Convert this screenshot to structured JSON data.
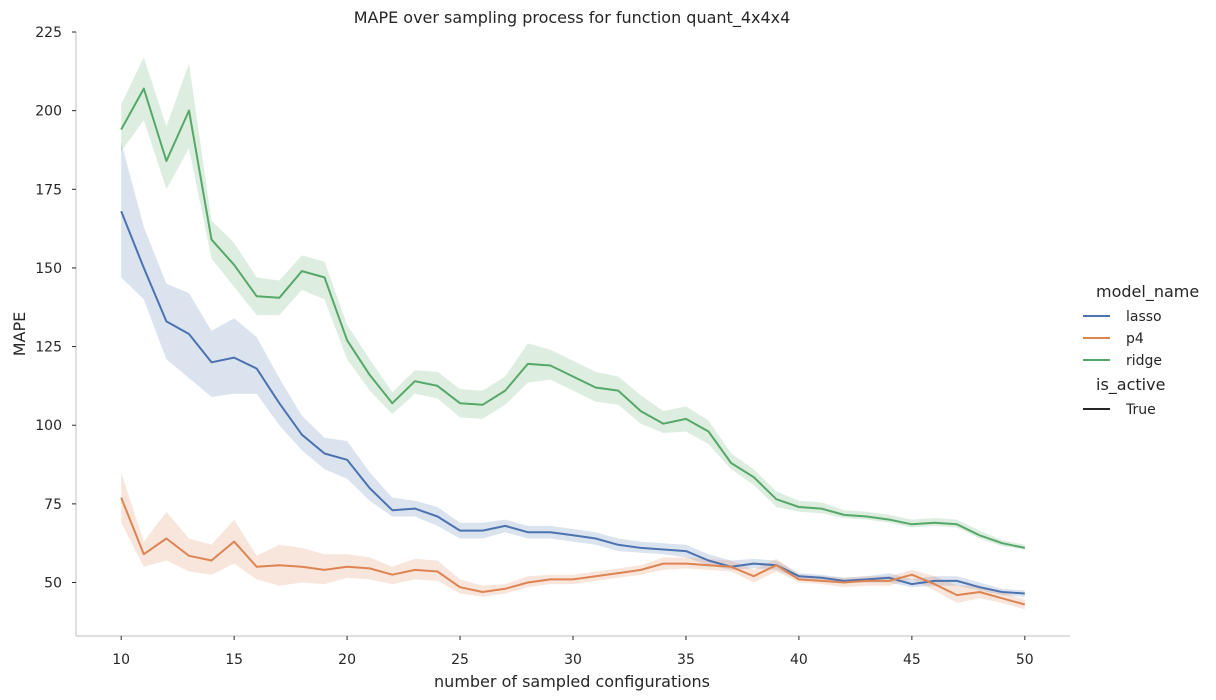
{
  "chart_data": {
    "type": "line",
    "title": "MAPE over sampling process for function quant_4x4x4",
    "xlabel": "number of sampled configurations",
    "ylabel": "MAPE",
    "xlim": [
      8,
      52
    ],
    "ylim": [
      33,
      225
    ],
    "xticks": [
      10,
      15,
      20,
      25,
      30,
      35,
      40,
      45,
      50
    ],
    "yticks": [
      50,
      75,
      100,
      125,
      150,
      175,
      200,
      225
    ],
    "grid": false,
    "legend": {
      "placement": "right",
      "hue_title": "model_name",
      "style_title": "is_active",
      "style_entries": [
        {
          "label": "True",
          "color": "#262626"
        }
      ]
    },
    "x": [
      10,
      11,
      12,
      13,
      14,
      15,
      16,
      17,
      18,
      19,
      20,
      21,
      22,
      23,
      24,
      25,
      26,
      27,
      28,
      29,
      30,
      31,
      32,
      33,
      34,
      35,
      36,
      37,
      38,
      39,
      40,
      41,
      42,
      43,
      44,
      45,
      46,
      47,
      48,
      49,
      50
    ],
    "series": [
      {
        "name": "lasso",
        "color": "#4c72b0",
        "values": [
          168,
          150,
          133,
          129,
          120,
          121.5,
          118,
          107,
          97,
          91,
          89,
          80,
          73,
          73.5,
          71,
          66.5,
          66.5,
          68,
          66,
          66,
          65,
          64,
          62,
          61,
          60.5,
          60,
          57,
          55,
          56,
          55.5,
          52,
          51.5,
          50.5,
          51,
          51.5,
          49.5,
          50.5,
          50.5,
          48.5,
          47,
          46.5
        ],
        "lower": [
          147,
          140,
          121,
          115,
          109,
          110,
          110,
          100,
          92,
          86,
          83,
          76,
          71,
          71,
          68,
          64,
          64,
          66,
          64,
          64,
          63,
          62,
          60,
          59.5,
          59,
          58,
          55.5,
          54,
          54.5,
          54,
          51,
          50.5,
          50,
          50,
          50,
          48.5,
          49,
          49,
          47.5,
          46,
          45.5
        ],
        "upper": [
          190,
          163,
          145,
          142,
          130,
          134,
          128,
          115,
          103,
          96,
          95,
          85,
          77,
          76,
          74,
          69,
          69,
          70,
          68,
          68,
          67,
          66,
          64,
          63,
          62.5,
          62,
          59,
          57,
          57.5,
          57,
          53,
          52.5,
          51.5,
          52,
          53,
          51,
          52,
          52,
          50,
          48,
          47.5
        ]
      },
      {
        "name": "p4",
        "color": "#dd8452",
        "values": [
          77,
          59,
          64,
          58.5,
          57,
          63,
          55,
          55.5,
          55,
          54,
          55,
          54.5,
          52.5,
          54,
          53.5,
          48.5,
          47,
          48,
          50,
          51,
          51,
          52,
          53,
          54,
          56,
          56,
          55.5,
          55,
          52,
          55.5,
          51,
          50.5,
          50,
          50.5,
          50.5,
          52.5,
          49.5,
          46,
          47,
          45,
          43
        ],
        "lower": [
          69,
          55,
          57,
          53.5,
          52.5,
          56,
          51,
          49,
          50,
          49.5,
          51.5,
          51,
          49.5,
          51,
          50.5,
          46.5,
          45.5,
          46.5,
          48.5,
          49.5,
          49.5,
          50.5,
          51.5,
          52.5,
          54,
          54.5,
          54,
          53.5,
          50,
          53.5,
          50,
          49.5,
          48.5,
          49,
          49,
          51,
          47.5,
          43.5,
          45,
          43.5,
          41.5
        ],
        "upper": [
          85,
          63,
          72.5,
          64,
          62,
          70,
          58.5,
          62,
          61,
          59,
          59,
          58,
          55,
          57.5,
          57,
          51,
          49,
          49.5,
          52,
          52.5,
          52.5,
          53.5,
          54.5,
          55.5,
          58,
          58,
          57.5,
          57,
          54,
          57.5,
          52.5,
          52,
          51.5,
          52,
          52,
          54,
          52,
          49,
          49,
          47,
          44.5
        ]
      },
      {
        "name": "ridge",
        "color": "#55a868",
        "values": [
          194,
          207,
          184,
          200,
          159,
          151,
          141,
          140.5,
          149,
          147,
          127,
          116,
          107,
          114,
          112.5,
          107,
          106.5,
          111,
          119.5,
          119,
          115.5,
          112,
          111,
          104.5,
          100.5,
          102,
          98,
          88,
          83.5,
          76.5,
          74,
          73.5,
          71.5,
          71,
          70,
          68.5,
          69,
          68.5,
          65,
          62.5,
          61
        ],
        "lower": [
          187,
          197,
          175,
          188,
          153,
          144,
          135,
          135,
          143,
          140,
          121,
          111,
          103.5,
          110,
          108.5,
          102.5,
          102,
          106.5,
          113.5,
          114.5,
          111,
          107.5,
          106.5,
          100.5,
          97.5,
          98,
          94,
          86,
          81,
          74,
          72.5,
          72,
          70.5,
          70,
          69,
          67.5,
          68,
          67.5,
          64,
          61.5,
          60.5
        ],
        "upper": [
          202,
          217,
          195,
          215,
          165,
          158,
          147,
          146,
          154,
          152,
          132,
          121,
          110.5,
          117.5,
          117,
          111.5,
          111,
          115.5,
          126,
          124,
          120.5,
          117,
          115.5,
          109.5,
          104.5,
          106,
          101.5,
          91,
          86,
          79,
          76,
          75.5,
          73,
          72.5,
          71.5,
          70,
          70.5,
          70,
          66.5,
          63.5,
          62
        ]
      }
    ]
  }
}
